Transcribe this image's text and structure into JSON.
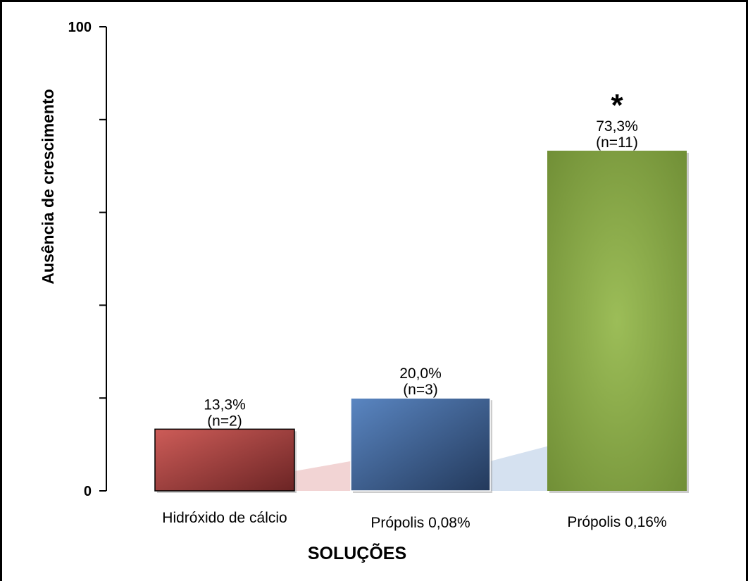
{
  "chart_data": {
    "type": "bar",
    "categories": [
      "Hidróxido de cálcio",
      "Própolis 0,08%",
      "Própolis 0,16%"
    ],
    "values": [
      13.3,
      20.0,
      73.3
    ],
    "value_labels": [
      "13,3%",
      "20,0%",
      "73,3%"
    ],
    "n_labels": [
      "(n=2)",
      "(n=3)",
      "(n=11)"
    ],
    "significance_marker": "*",
    "significant_index": 2,
    "xlabel": "SOLUÇÕES",
    "ylabel": "Ausência de crescimento",
    "ylim": [
      0,
      100
    ],
    "yticks": [
      0,
      20,
      40,
      60,
      80,
      100
    ],
    "ytick_labels": [
      "0",
      "",
      "",
      "",
      "",
      "100"
    ],
    "grid": false,
    "legend": "none",
    "colors": {
      "bars": [
        "#b84a47",
        "#4a6fa5",
        "#7b9a3c"
      ],
      "bar_light": [
        "#cd5c58",
        "#5a86c2",
        "#9cbd58"
      ],
      "bar_dark": [
        "#6b2424",
        "#23395b",
        "#6e8c34"
      ],
      "connector": [
        "#f2d4d4",
        "#d5e1f0"
      ]
    }
  }
}
